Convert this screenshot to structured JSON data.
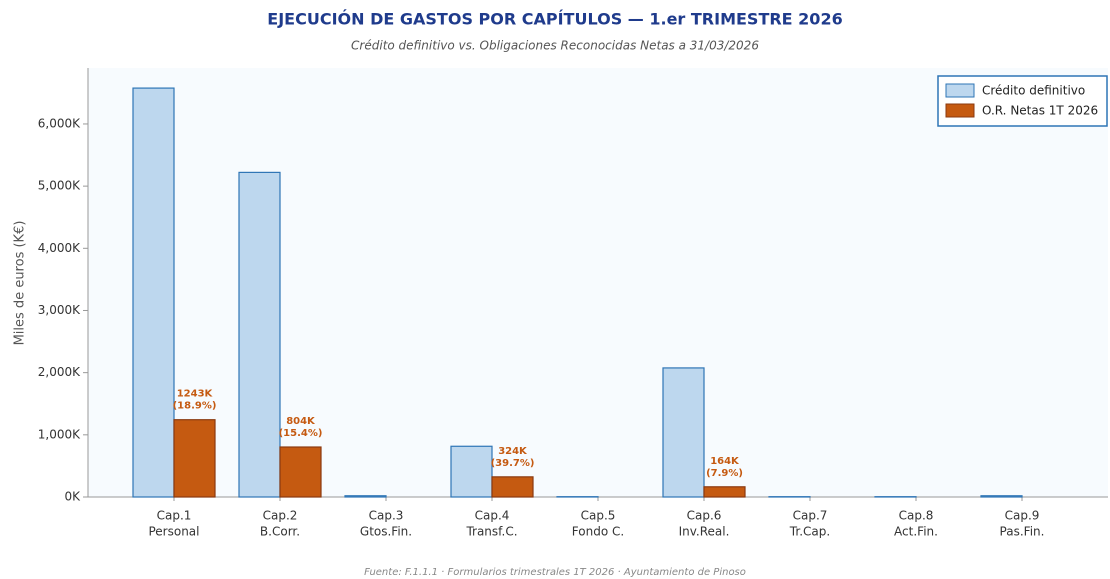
{
  "chart_data": {
    "type": "bar",
    "title": "EJECUCIÓN DE GASTOS POR CAPÍTULOS — 1.er TRIMESTRE 2026",
    "subtitle": "Crédito definitivo vs. Obligaciones Reconocidas Netas a 31/03/2026",
    "y_label": "Miles de euros (K€)",
    "footer": "Fuente: F.1.1.1 · Formularios trimestrales 1T 2026 · Ayuntamiento de Pinoso",
    "categories": [
      [
        "Cap.1",
        "Personal"
      ],
      [
        "Cap.2",
        "B.Corr."
      ],
      [
        "Cap.3",
        "Gtos.Fin."
      ],
      [
        "Cap.4",
        "Transf.C."
      ],
      [
        "Cap.5",
        "Fondo C."
      ],
      [
        "Cap.6",
        "Inv.Real."
      ],
      [
        "Cap.7",
        "Tr.Cap."
      ],
      [
        "Cap.8",
        "Act.Fin."
      ],
      [
        "Cap.9",
        "Pas.Fin."
      ]
    ],
    "series": [
      {
        "name": "Crédito definitivo",
        "color": "#bdd7ee",
        "edge": "#2e75b6",
        "values": [
          6577,
          5221,
          20,
          816,
          5,
          2076,
          5,
          5,
          20
        ]
      },
      {
        "name": "O.R. Netas 1T 2026",
        "color": "#c55a11",
        "edge": "#8b3a0f",
        "values": [
          1243,
          804,
          0,
          324,
          0,
          164,
          0,
          0,
          0
        ],
        "value_labels": [
          [
            "1243K",
            "(18.9%)"
          ],
          [
            "804K",
            "(15.4%)"
          ],
          null,
          [
            "324K",
            "(39.7%)"
          ],
          null,
          [
            "164K",
            "(7.9%)"
          ],
          null,
          null,
          null
        ]
      }
    ],
    "ylim": [
      0,
      6900
    ],
    "yticks": [
      {
        "value": 0,
        "label": "0K"
      },
      {
        "value": 1000,
        "label": "1,000K"
      },
      {
        "value": 2000,
        "label": "2,000K"
      },
      {
        "value": 3000,
        "label": "3,000K"
      },
      {
        "value": 4000,
        "label": "4,000K"
      },
      {
        "value": 5000,
        "label": "5,000K"
      },
      {
        "value": 6000,
        "label": "6,000K"
      }
    ],
    "legend": "upper right"
  }
}
